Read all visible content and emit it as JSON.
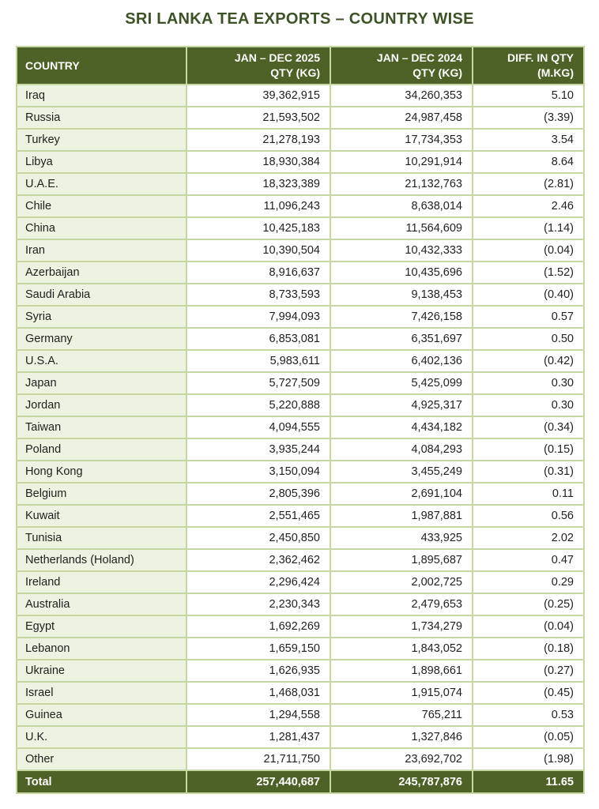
{
  "title": "SRI LANKA TEA EXPORTS – COUNTRY WISE",
  "table": {
    "headers": {
      "country": "COUNTRY",
      "qty2025_line1": "JAN – DEC 2025",
      "qty2025_line2": "QTY (KG)",
      "qty2024_line1": "JAN – DEC 2024",
      "qty2024_line2": "QTY (KG)",
      "diff_line1": "DIFF. IN QTY",
      "diff_line2": "(M.KG)"
    },
    "rows": [
      [
        "Iraq",
        "39,362,915",
        "34,260,353",
        "5.10"
      ],
      [
        "Russia",
        "21,593,502",
        "24,987,458",
        "(3.39)"
      ],
      [
        "Turkey",
        "21,278,193",
        "17,734,353",
        "3.54"
      ],
      [
        "Libya",
        "18,930,384",
        "10,291,914",
        "8.64"
      ],
      [
        "U.A.E.",
        "18,323,389",
        "21,132,763",
        "(2.81)"
      ],
      [
        "Chile",
        "11,096,243",
        "8,638,014",
        "2.46"
      ],
      [
        "China",
        "10,425,183",
        "11,564,609",
        "(1.14)"
      ],
      [
        "Iran",
        "10,390,504",
        "10,432,333",
        "(0.04)"
      ],
      [
        "Azerbaijan",
        "8,916,637",
        "10,435,696",
        "(1.52)"
      ],
      [
        "Saudi Arabia",
        "8,733,593",
        "9,138,453",
        "(0.40)"
      ],
      [
        "Syria",
        "7,994,093",
        "7,426,158",
        "0.57"
      ],
      [
        "Germany",
        "6,853,081",
        "6,351,697",
        "0.50"
      ],
      [
        "U.S.A.",
        "5,983,611",
        "6,402,136",
        "(0.42)"
      ],
      [
        "Japan",
        "5,727,509",
        "5,425,099",
        "0.30"
      ],
      [
        "Jordan",
        "5,220,888",
        "4,925,317",
        "0.30"
      ],
      [
        "Taiwan",
        "4,094,555",
        "4,434,182",
        "(0.34)"
      ],
      [
        "Poland",
        "3,935,244",
        "4,084,293",
        "(0.15)"
      ],
      [
        "Hong Kong",
        "3,150,094",
        "3,455,249",
        "(0.31)"
      ],
      [
        "Belgium",
        "2,805,396",
        "2,691,104",
        "0.11"
      ],
      [
        "Kuwait",
        "2,551,465",
        "1,987,881",
        "0.56"
      ],
      [
        "Tunisia",
        "2,450,850",
        "433,925",
        "2.02"
      ],
      [
        "Netherlands (Holand)",
        "2,362,462",
        "1,895,687",
        "0.47"
      ],
      [
        "Ireland",
        "2,296,424",
        "2,002,725",
        "0.29"
      ],
      [
        "Australia",
        "2,230,343",
        "2,479,653",
        "(0.25)"
      ],
      [
        "Egypt",
        "1,692,269",
        "1,734,279",
        "(0.04)"
      ],
      [
        "Lebanon",
        "1,659,150",
        "1,843,052",
        "(0.18)"
      ],
      [
        "Ukraine",
        "1,626,935",
        "1,898,661",
        "(0.27)"
      ],
      [
        "Israel",
        "1,468,031",
        "1,915,074",
        "(0.45)"
      ],
      [
        "Guinea",
        "1,294,558",
        "765,211",
        "0.53"
      ],
      [
        "U.K.",
        "1,281,437",
        "1,327,846",
        "(0.05)"
      ],
      [
        "Other",
        "21,711,750",
        "23,692,702",
        "(1.98)"
      ]
    ],
    "total": {
      "label": "Total",
      "qty_2025": "257,440,687",
      "qty_2024": "245,787,876",
      "diff": "11.65"
    }
  },
  "colors": {
    "header_bg": "#4e6227",
    "country_col_bg": "#edf3e1",
    "border": "#c6d7a2",
    "title_text": "#3d5226",
    "total_bg": "#4e6227",
    "header_text": "#ffffff",
    "body_text": "#1f1f1f"
  }
}
